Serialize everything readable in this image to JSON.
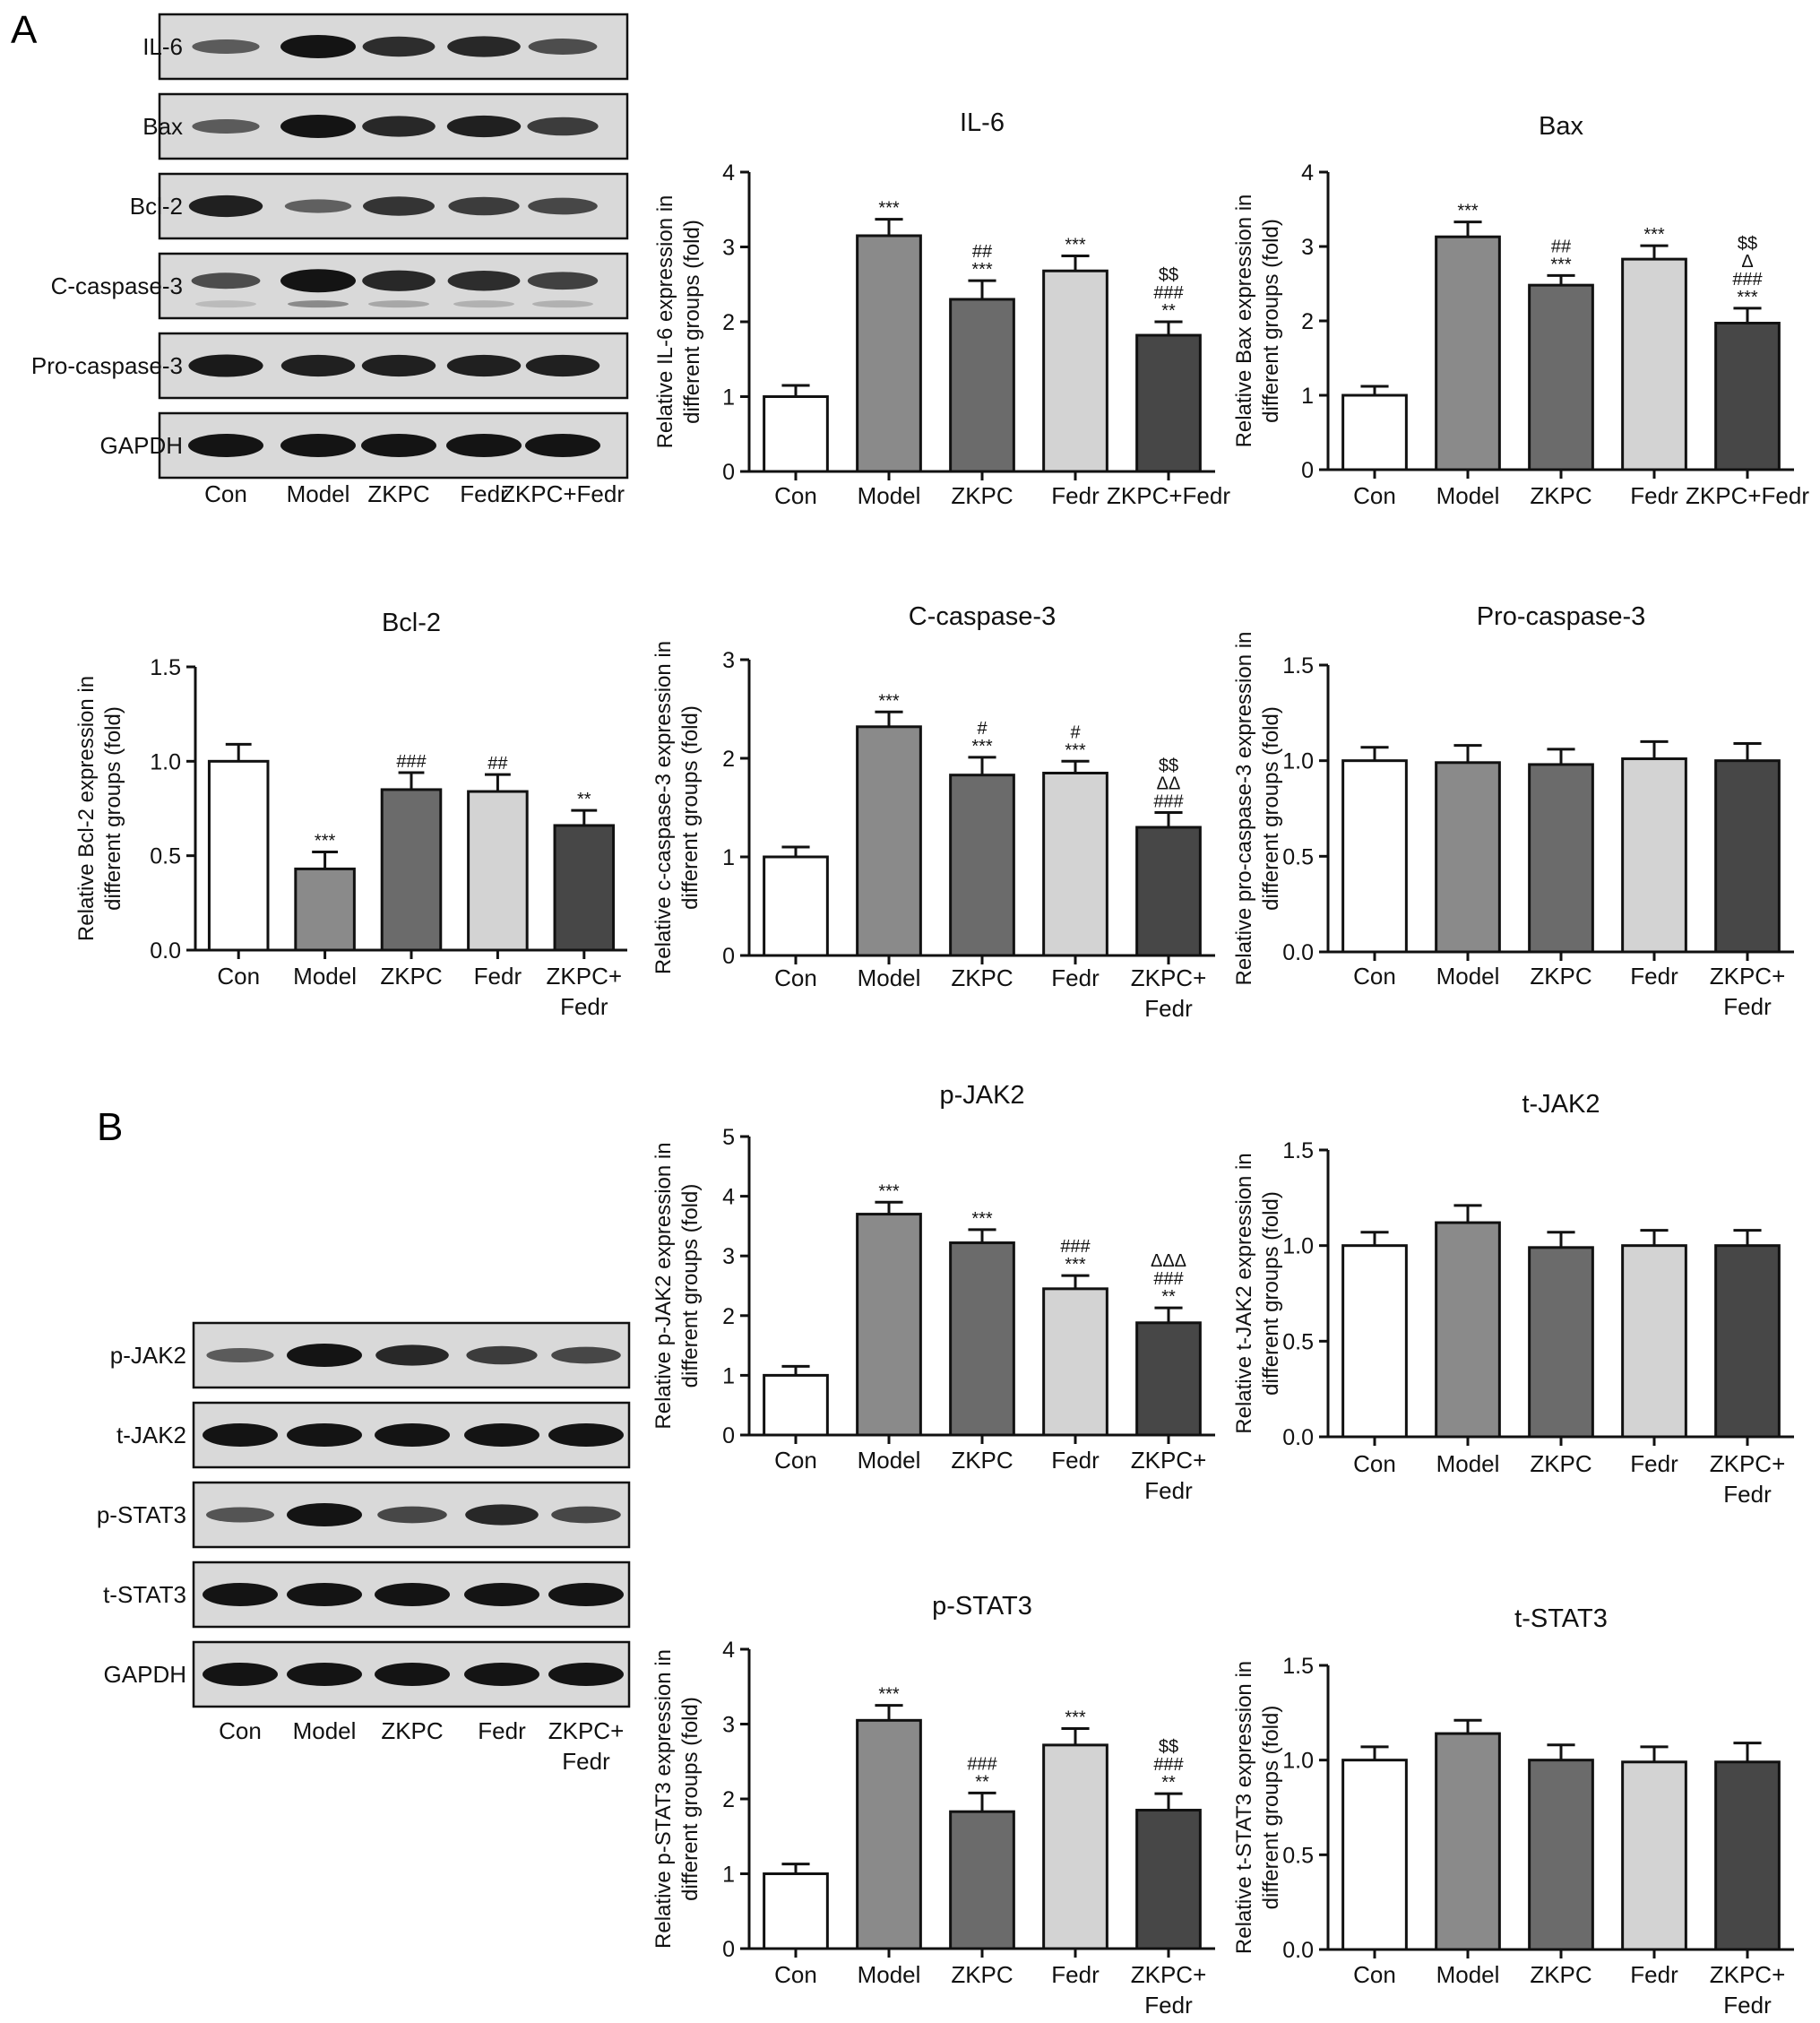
{
  "panel_labels": [
    "A",
    "B"
  ],
  "colors": {
    "Con": "#ffffff",
    "Model": "#8a8a8a",
    "ZKPC": "#6b6b6b",
    "Fedr": "#d3d3d3",
    "ZKPC+Fedr": "#474747",
    "ink": "#111111",
    "blot_bg": "#d9d9d9",
    "band": "#141414"
  },
  "blots": [
    {
      "panel": "A",
      "rows": [
        {
          "label": "IL-6",
          "bands": [
            0.45,
            1.0,
            0.8,
            0.85,
            0.55
          ],
          "secondary": null
        },
        {
          "label": "Bax",
          "bands": [
            0.45,
            1.0,
            0.85,
            0.9,
            0.7
          ],
          "secondary": null
        },
        {
          "label": "Bcl-2",
          "bands": [
            0.9,
            0.4,
            0.75,
            0.7,
            0.6
          ],
          "secondary": null
        },
        {
          "label": "C-caspase-3",
          "bands": [
            0.55,
            1.0,
            0.85,
            0.8,
            0.65
          ],
          "secondary": [
            0.15,
            0.4,
            0.25,
            0.2,
            0.2
          ]
        },
        {
          "label": "Pro-caspase-3",
          "bands": [
            0.95,
            0.9,
            0.9,
            0.9,
            0.9
          ],
          "secondary": null
        },
        {
          "label": "GAPDH",
          "bands": [
            1.0,
            1.0,
            1.0,
            1.0,
            1.0
          ],
          "secondary": null
        }
      ],
      "lanes": [
        [
          "Con"
        ],
        [
          "Model"
        ],
        [
          "ZKPC"
        ],
        [
          "Fedr"
        ],
        [
          "ZKPC+Fedr"
        ]
      ]
    },
    {
      "panel": "B",
      "rows": [
        {
          "label": "p-JAK2",
          "bands": [
            0.45,
            1.0,
            0.85,
            0.7,
            0.6
          ],
          "secondary": null
        },
        {
          "label": "t-JAK2",
          "bands": [
            1.0,
            1.0,
            1.0,
            1.0,
            1.0
          ],
          "secondary": null
        },
        {
          "label": "p-STAT3",
          "bands": [
            0.5,
            1.0,
            0.6,
            0.85,
            0.6
          ],
          "secondary": null
        },
        {
          "label": "t-STAT3",
          "bands": [
            1.0,
            1.0,
            1.0,
            1.0,
            1.0
          ],
          "secondary": null
        },
        {
          "label": "GAPDH",
          "bands": [
            1.0,
            1.0,
            1.0,
            1.0,
            1.0
          ],
          "secondary": null
        }
      ],
      "lanes": [
        [
          "Con"
        ],
        [
          "Model"
        ],
        [
          "ZKPC"
        ],
        [
          "Fedr"
        ],
        [
          "ZKPC+",
          "Fedr"
        ]
      ]
    }
  ],
  "chart_data": [
    {
      "type": "bar",
      "title": "IL-6",
      "ylabel": [
        "Relative IL-6 expression in",
        "different groups (fold)"
      ],
      "ylim": [
        0,
        4
      ],
      "yticks": [
        "0",
        "1",
        "2",
        "3",
        "4"
      ],
      "categories": [
        [
          "Con"
        ],
        [
          "Model"
        ],
        [
          "ZKPC"
        ],
        [
          "Fedr"
        ],
        [
          "ZKPC+Fedr"
        ]
      ],
      "values": [
        1.0,
        3.15,
        2.3,
        2.68,
        1.82
      ],
      "errors": [
        0.15,
        0.22,
        0.25,
        0.2,
        0.18
      ],
      "annotations": [
        [],
        [
          "***"
        ],
        [
          "##",
          "***"
        ],
        [
          "***"
        ],
        [
          "$$",
          "###",
          "**"
        ]
      ]
    },
    {
      "type": "bar",
      "title": "Bax",
      "ylabel": [
        "Relative Bax expression in",
        "different groups (fold)"
      ],
      "ylim": [
        0,
        4
      ],
      "yticks": [
        "0",
        "1",
        "2",
        "3",
        "4"
      ],
      "categories": [
        [
          "Con"
        ],
        [
          "Model"
        ],
        [
          "ZKPC"
        ],
        [
          "Fedr"
        ],
        [
          "ZKPC+Fedr"
        ]
      ],
      "values": [
        1.0,
        3.13,
        2.48,
        2.83,
        1.97
      ],
      "errors": [
        0.12,
        0.2,
        0.13,
        0.18,
        0.2
      ],
      "annotations": [
        [],
        [
          "***"
        ],
        [
          "##",
          "***"
        ],
        [
          "***"
        ],
        [
          "$$",
          "Δ",
          "###",
          "***"
        ]
      ]
    },
    {
      "type": "bar",
      "title": "Bcl-2",
      "ylabel": [
        "Relative Bcl-2 expression in",
        "different groups (fold)"
      ],
      "ylim": [
        0,
        1.5
      ],
      "yticks": [
        "0.0",
        "0.5",
        "1.0",
        "1.5"
      ],
      "categories": [
        [
          "Con"
        ],
        [
          "Model"
        ],
        [
          "ZKPC"
        ],
        [
          "Fedr"
        ],
        [
          "ZKPC+",
          "Fedr"
        ]
      ],
      "values": [
        1.0,
        0.43,
        0.85,
        0.84,
        0.66
      ],
      "errors": [
        0.09,
        0.09,
        0.09,
        0.09,
        0.08
      ],
      "annotations": [
        [],
        [
          "***"
        ],
        [
          "###"
        ],
        [
          "##"
        ],
        [
          "**"
        ]
      ]
    },
    {
      "type": "bar",
      "title": "C-caspase-3",
      "ylabel": [
        "Relative c-caspase-3 expression in",
        "different groups (fold)"
      ],
      "ylim": [
        0,
        3
      ],
      "yticks": [
        "0",
        "1",
        "2",
        "3"
      ],
      "categories": [
        [
          "Con"
        ],
        [
          "Model"
        ],
        [
          "ZKPC"
        ],
        [
          "Fedr"
        ],
        [
          "ZKPC+",
          "Fedr"
        ]
      ],
      "values": [
        1.0,
        2.32,
        1.83,
        1.85,
        1.3
      ],
      "errors": [
        0.1,
        0.15,
        0.18,
        0.12,
        0.15
      ],
      "annotations": [
        [],
        [
          "***"
        ],
        [
          "#",
          "***"
        ],
        [
          "#",
          "***"
        ],
        [
          "$$",
          "ΔΔ",
          "###"
        ]
      ]
    },
    {
      "type": "bar",
      "title": "Pro-caspase-3",
      "ylabel": [
        "Relative pro-caspase-3 expression in",
        "different groups (fold)"
      ],
      "ylim": [
        0,
        1.5
      ],
      "yticks": [
        "0.0",
        "0.5",
        "1.0",
        "1.5"
      ],
      "categories": [
        [
          "Con"
        ],
        [
          "Model"
        ],
        [
          "ZKPC"
        ],
        [
          "Fedr"
        ],
        [
          "ZKPC+",
          "Fedr"
        ]
      ],
      "values": [
        1.0,
        0.99,
        0.98,
        1.01,
        1.0
      ],
      "errors": [
        0.07,
        0.09,
        0.08,
        0.09,
        0.09
      ],
      "annotations": [
        [],
        [],
        [],
        [],
        []
      ]
    },
    {
      "type": "bar",
      "title": "p-JAK2",
      "ylabel": [
        "Relative p-JAK2 expression in",
        "different groups (fold)"
      ],
      "ylim": [
        0,
        5
      ],
      "yticks": [
        "0",
        "1",
        "2",
        "3",
        "4",
        "5"
      ],
      "categories": [
        [
          "Con"
        ],
        [
          "Model"
        ],
        [
          "ZKPC"
        ],
        [
          "Fedr"
        ],
        [
          "ZKPC+",
          "Fedr"
        ]
      ],
      "values": [
        1.0,
        3.7,
        3.22,
        2.45,
        1.88
      ],
      "errors": [
        0.15,
        0.2,
        0.22,
        0.22,
        0.25
      ],
      "annotations": [
        [],
        [
          "***"
        ],
        [
          "***"
        ],
        [
          "###",
          "***"
        ],
        [
          "ΔΔΔ",
          "###",
          "**"
        ]
      ]
    },
    {
      "type": "bar",
      "title": "t-JAK2",
      "ylabel": [
        "Relative t-JAK2 expression in",
        "different groups (fold)"
      ],
      "ylim": [
        0,
        1.5
      ],
      "yticks": [
        "0.0",
        "0.5",
        "1.0",
        "1.5"
      ],
      "categories": [
        [
          "Con"
        ],
        [
          "Model"
        ],
        [
          "ZKPC"
        ],
        [
          "Fedr"
        ],
        [
          "ZKPC+",
          "Fedr"
        ]
      ],
      "values": [
        1.0,
        1.12,
        0.99,
        1.0,
        1.0
      ],
      "errors": [
        0.07,
        0.09,
        0.08,
        0.08,
        0.08
      ],
      "annotations": [
        [],
        [],
        [],
        [],
        []
      ]
    },
    {
      "type": "bar",
      "title": "p-STAT3",
      "ylabel": [
        "Relative p-STAT3 expression in",
        "different groups (fold)"
      ],
      "ylim": [
        0,
        4
      ],
      "yticks": [
        "0",
        "1",
        "2",
        "3",
        "4"
      ],
      "categories": [
        [
          "Con"
        ],
        [
          "Model"
        ],
        [
          "ZKPC"
        ],
        [
          "Fedr"
        ],
        [
          "ZKPC+",
          "Fedr"
        ]
      ],
      "values": [
        1.0,
        3.05,
        1.83,
        2.72,
        1.85
      ],
      "errors": [
        0.13,
        0.2,
        0.25,
        0.22,
        0.22
      ],
      "annotations": [
        [],
        [
          "***"
        ],
        [
          "###",
          "**"
        ],
        [
          "***"
        ],
        [
          "$$",
          "###",
          "**"
        ]
      ]
    },
    {
      "type": "bar",
      "title": "t-STAT3",
      "ylabel": [
        "Relative t-STAT3 expression in",
        "different groups (fold)"
      ],
      "ylim": [
        0,
        1.5
      ],
      "yticks": [
        "0.0",
        "0.5",
        "1.0",
        "1.5"
      ],
      "categories": [
        [
          "Con"
        ],
        [
          "Model"
        ],
        [
          "ZKPC"
        ],
        [
          "Fedr"
        ],
        [
          "ZKPC+",
          "Fedr"
        ]
      ],
      "values": [
        1.0,
        1.14,
        1.0,
        0.99,
        0.99
      ],
      "errors": [
        0.07,
        0.07,
        0.08,
        0.08,
        0.1
      ],
      "annotations": [
        [],
        [],
        [],
        [],
        []
      ]
    }
  ]
}
